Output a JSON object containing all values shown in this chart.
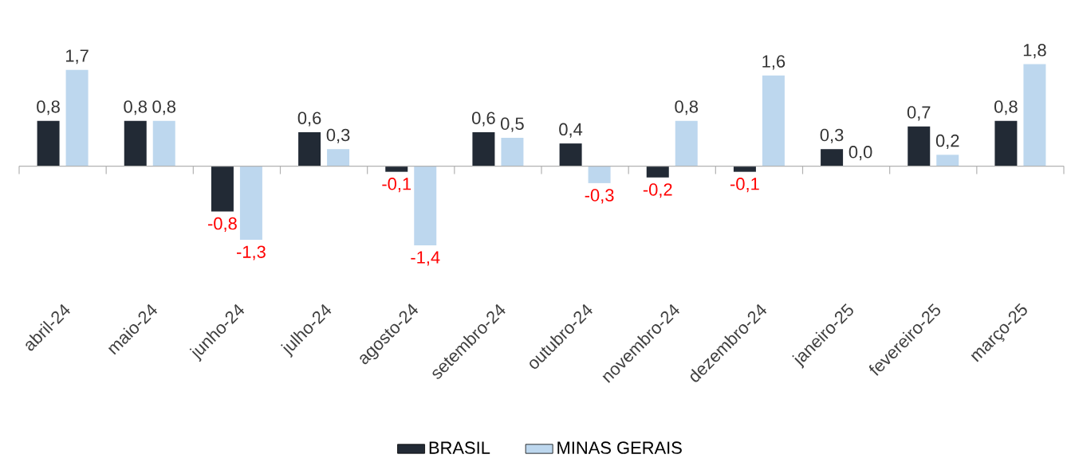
{
  "chart_data": {
    "type": "bar",
    "categories": [
      "abril-24",
      "maio-24",
      "junho-24",
      "julho-24",
      "agosto-24",
      "setembro-24",
      "outubro-24",
      "novembro-24",
      "dezembro-24",
      "janeiro-25",
      "fevereiro-25",
      "março-25"
    ],
    "series": [
      {
        "name": "BRASIL",
        "color": "#222a35",
        "values": [
          0.8,
          0.8,
          -0.8,
          0.6,
          -0.1,
          0.6,
          0.4,
          -0.2,
          -0.1,
          0.3,
          0.7,
          0.8
        ],
        "value_labels": [
          "0,8",
          "0,8",
          "-0,8",
          "0,6",
          "-0,1",
          "0,6",
          "0,4",
          "-0,2",
          "-0,1",
          "0,3",
          "0,7",
          "0,8"
        ]
      },
      {
        "name": "MINAS GERAIS",
        "color": "#bdd7ee",
        "values": [
          1.7,
          0.8,
          -1.3,
          0.3,
          -1.4,
          0.5,
          -0.3,
          0.8,
          1.6,
          0.0,
          0.2,
          1.8
        ],
        "value_labels": [
          "1,7",
          "0,8",
          "-1,3",
          "0,3",
          "-1,4",
          "0,5",
          "-0,3",
          "0,8",
          "1,6",
          "0,0",
          "0,2",
          "1,8"
        ]
      }
    ],
    "legend": "bottom"
  }
}
